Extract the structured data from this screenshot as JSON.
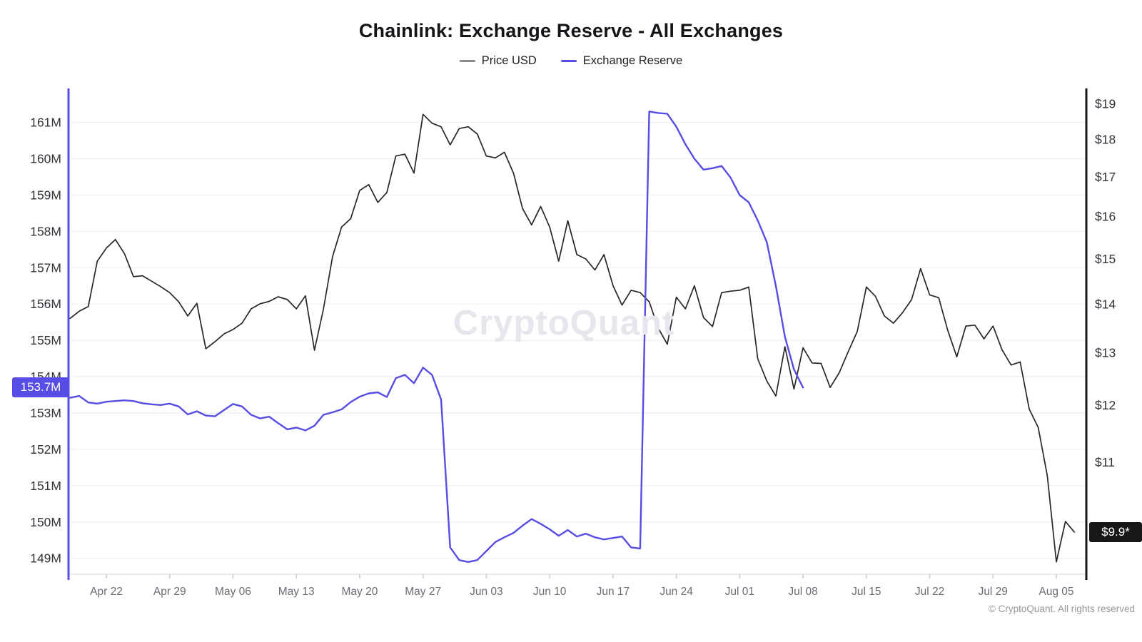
{
  "header": {
    "title": "Chainlink: Exchange Reserve - All Exchanges",
    "legend": [
      {
        "label": "Price USD",
        "dash_color": "#8a8a8a"
      },
      {
        "label": "Exchange Reserve",
        "dash_color": "#574de4"
      }
    ]
  },
  "watermark": "CryptoQuant",
  "footer": "© CryptoQuant. All rights reserved",
  "badges": {
    "reserve_last": "153.7M",
    "price_last": "$9.9*"
  },
  "axes": {
    "left": {
      "labels": [
        "161M",
        "160M",
        "159M",
        "158M",
        "157M",
        "156M",
        "155M",
        "154M",
        "153M",
        "152M",
        "151M",
        "150M",
        "149M"
      ],
      "values": [
        161,
        160,
        159,
        158,
        157,
        156,
        155,
        154,
        153,
        152,
        151,
        150,
        149
      ]
    },
    "right": {
      "labels": [
        "$19",
        "$18",
        "$17",
        "$16",
        "$15",
        "$14",
        "$13",
        "$12",
        "$11"
      ],
      "values": [
        19,
        18,
        17,
        16,
        15,
        14,
        13,
        12,
        11
      ]
    },
    "x": {
      "labels": [
        "Apr 22",
        "Apr 29",
        "May 06",
        "May 13",
        "May 20",
        "May 27",
        "Jun 03",
        "Jun 10",
        "Jun 17",
        "Jun 24",
        "Jul 01",
        "Jul 08",
        "Jul 15",
        "Jul 22",
        "Jul 29",
        "Aug 05"
      ]
    }
  },
  "chart_data": {
    "type": "line",
    "title": "Chainlink: Exchange Reserve - All Exchanges",
    "legend_position": "top-center",
    "grid": "horizontal-only",
    "left_axis": {
      "unit": "M tokens",
      "scale": "linear",
      "ticks": [
        161,
        160,
        159,
        158,
        157,
        156,
        155,
        154,
        153,
        152,
        151,
        150,
        149
      ],
      "last_value_label": "153.7M"
    },
    "right_axis": {
      "unit": "USD",
      "scale": "log",
      "ticks": [
        19,
        18,
        17,
        16,
        15,
        14,
        13,
        12,
        11
      ],
      "last_value_label": "$9.9*"
    },
    "series": [
      {
        "name": "Price USD",
        "axis": "right",
        "color": "#26262b",
        "dates": [
          "Apr 18",
          "Apr 19",
          "Apr 20",
          "Apr 21",
          "Apr 22",
          "Apr 23",
          "Apr 24",
          "Apr 25",
          "Apr 26",
          "Apr 27",
          "Apr 28",
          "Apr 29",
          "Apr 30",
          "May 01",
          "May 02",
          "May 03",
          "May 04",
          "May 05",
          "May 06",
          "May 07",
          "May 08",
          "May 09",
          "May 10",
          "May 11",
          "May 12",
          "May 13",
          "May 14",
          "May 15",
          "May 16",
          "May 17",
          "May 18",
          "May 19",
          "May 20",
          "May 21",
          "May 22",
          "May 23",
          "May 24",
          "May 25",
          "May 26",
          "May 27",
          "May 28",
          "May 29",
          "May 30",
          "May 31",
          "Jun 01",
          "Jun 02",
          "Jun 03",
          "Jun 04",
          "Jun 05",
          "Jun 06",
          "Jun 07",
          "Jun 08",
          "Jun 09",
          "Jun 10",
          "Jun 11",
          "Jun 12",
          "Jun 13",
          "Jun 14",
          "Jun 15",
          "Jun 16",
          "Jun 17",
          "Jun 18",
          "Jun 19",
          "Jun 20",
          "Jun 21",
          "Jun 22",
          "Jun 23",
          "Jun 24",
          "Jun 25",
          "Jun 26",
          "Jun 27",
          "Jun 28",
          "Jun 29",
          "Jun 30",
          "Jul 01",
          "Jul 02",
          "Jul 03",
          "Jul 04",
          "Jul 05",
          "Jul 06",
          "Jul 07",
          "Jul 08",
          "Jul 09",
          "Jul 10",
          "Jul 11",
          "Jul 12",
          "Jul 13",
          "Jul 14",
          "Jul 15",
          "Jul 16",
          "Jul 17",
          "Jul 18",
          "Jul 19",
          "Jul 20",
          "Jul 21",
          "Jul 22",
          "Jul 23",
          "Jul 24",
          "Jul 25",
          "Jul 26",
          "Jul 27",
          "Jul 28",
          "Jul 29",
          "Jul 30",
          "Jul 31",
          "Aug 01",
          "Aug 02",
          "Aug 03",
          "Aug 04",
          "Aug 05",
          "Aug 06",
          "Aug 07"
        ],
        "values": [
          13.7,
          13.85,
          13.95,
          14.95,
          15.25,
          15.45,
          15.12,
          14.6,
          14.62,
          14.5,
          14.38,
          14.25,
          14.05,
          13.75,
          14.02,
          13.08,
          13.22,
          13.38,
          13.47,
          13.6,
          13.9,
          14.01,
          14.06,
          14.16,
          14.1,
          13.9,
          14.18,
          13.05,
          13.9,
          15.05,
          15.75,
          15.95,
          16.65,
          16.8,
          16.35,
          16.6,
          17.55,
          17.6,
          17.1,
          18.7,
          18.45,
          18.35,
          17.85,
          18.3,
          18.35,
          18.15,
          17.55,
          17.5,
          17.65,
          17.1,
          16.2,
          15.8,
          16.25,
          15.75,
          14.95,
          15.9,
          15.1,
          15.0,
          14.75,
          15.1,
          14.4,
          13.98,
          14.3,
          14.25,
          14.05,
          13.5,
          13.17,
          14.15,
          13.9,
          14.4,
          13.72,
          13.53,
          14.25,
          14.28,
          14.3,
          14.37,
          12.88,
          12.45,
          12.17,
          13.12,
          12.3,
          13.1,
          12.8,
          12.79,
          12.33,
          12.61,
          13.02,
          13.43,
          14.37,
          14.17,
          13.75,
          13.6,
          13.82,
          14.1,
          14.78,
          14.2,
          14.14,
          13.45,
          12.92,
          13.54,
          13.56,
          13.28,
          13.54,
          13.06,
          12.76,
          12.82,
          11.93,
          11.6,
          10.78,
          9.45,
          10.05,
          9.89
        ]
      },
      {
        "name": "Exchange Reserve",
        "axis": "left",
        "color": "#574de4",
        "dates": [
          "Apr 18",
          "Apr 19",
          "Apr 20",
          "Apr 21",
          "Apr 22",
          "Apr 23",
          "Apr 24",
          "Apr 25",
          "Apr 26",
          "Apr 27",
          "Apr 28",
          "Apr 29",
          "Apr 30",
          "May 01",
          "May 02",
          "May 03",
          "May 04",
          "May 05",
          "May 06",
          "May 07",
          "May 08",
          "May 09",
          "May 10",
          "May 11",
          "May 12",
          "May 13",
          "May 14",
          "May 15",
          "May 16",
          "May 17",
          "May 18",
          "May 19",
          "May 20",
          "May 21",
          "May 22",
          "May 23",
          "May 24",
          "May 25",
          "May 26",
          "May 27",
          "May 28",
          "May 29",
          "May 30",
          "May 31",
          "Jun 01",
          "Jun 02",
          "Jun 03",
          "Jun 04",
          "Jun 05",
          "Jun 06",
          "Jun 07",
          "Jun 08",
          "Jun 09",
          "Jun 10",
          "Jun 11",
          "Jun 12",
          "Jun 13",
          "Jun 14",
          "Jun 15",
          "Jun 16",
          "Jun 17",
          "Jun 18",
          "Jun 19",
          "Jun 20",
          "Jun 21",
          "Jun 22",
          "Jun 23",
          "Jun 24",
          "Jun 25",
          "Jun 26",
          "Jun 27",
          "Jun 28",
          "Jun 29",
          "Jun 30",
          "Jul 01",
          "Jul 02",
          "Jul 03",
          "Jul 04",
          "Jul 05",
          "Jul 06",
          "Jul 07",
          "Jul 08"
        ],
        "values": [
          153.42,
          153.47,
          153.29,
          153.26,
          153.31,
          153.33,
          153.35,
          153.33,
          153.27,
          153.24,
          153.22,
          153.26,
          153.18,
          152.96,
          153.05,
          152.93,
          152.91,
          153.08,
          153.25,
          153.18,
          152.95,
          152.85,
          152.9,
          152.72,
          152.55,
          152.6,
          152.52,
          152.65,
          152.95,
          153.02,
          153.1,
          153.3,
          153.45,
          153.54,
          153.57,
          153.44,
          153.96,
          154.05,
          153.82,
          154.25,
          154.05,
          153.37,
          149.3,
          148.95,
          148.9,
          148.95,
          149.2,
          149.45,
          149.58,
          149.7,
          149.9,
          150.08,
          149.95,
          149.8,
          149.62,
          149.78,
          149.6,
          149.68,
          149.58,
          149.52,
          149.56,
          149.6,
          149.3,
          149.27,
          161.3,
          161.26,
          161.24,
          160.88,
          160.4,
          160.0,
          159.7,
          159.74,
          159.8,
          159.48,
          159.0,
          158.8,
          158.3,
          157.7,
          156.5,
          155.1,
          154.2,
          153.7
        ]
      }
    ]
  }
}
